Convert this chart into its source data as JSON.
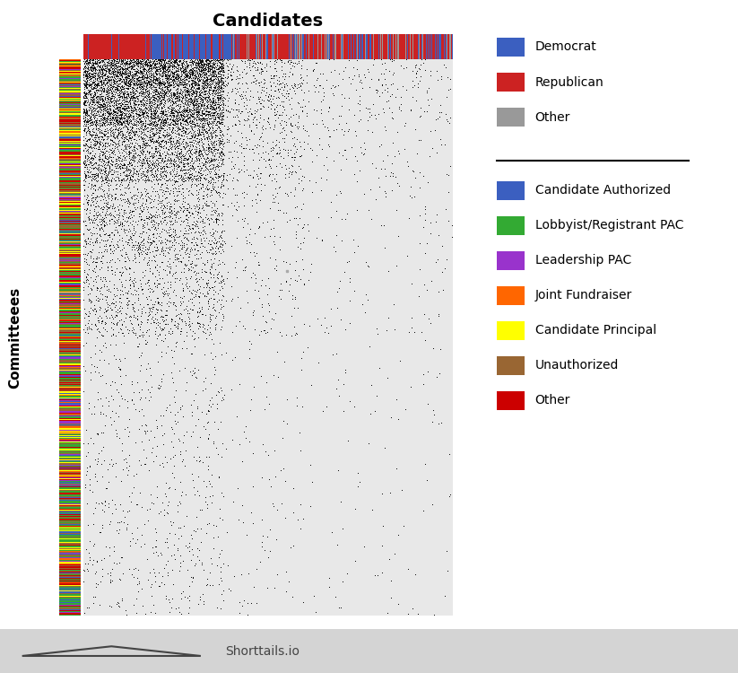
{
  "title": "Candidates",
  "ylabel": "Committeees",
  "n_candidates": 500,
  "n_committees": 700,
  "candidate_party_colors": {
    "Democrat": "#3B5FC0",
    "Republican": "#CC2222",
    "Other": "#999999"
  },
  "committee_type_colors": {
    "Candidate Authorized": "#3B5FC0",
    "Lobbyist/Registrant PAC": "#33AA33",
    "Leadership PAC": "#9933CC",
    "Joint Fundraiser": "#FF6600",
    "Candidate Principal": "#FFFF00",
    "Unauthorized": "#996633",
    "Other": "#CC0000"
  },
  "background_color": "#ffffff",
  "matrix_bg_color": "#e8e8e8",
  "dot_color": "#111111",
  "title_fontsize": 14,
  "axis_label_fontsize": 11,
  "footer_text": "Shorttails.io",
  "footer_bg_color": "#d4d4d4",
  "footer_color": "#444444",
  "legend_fontsize": 10
}
